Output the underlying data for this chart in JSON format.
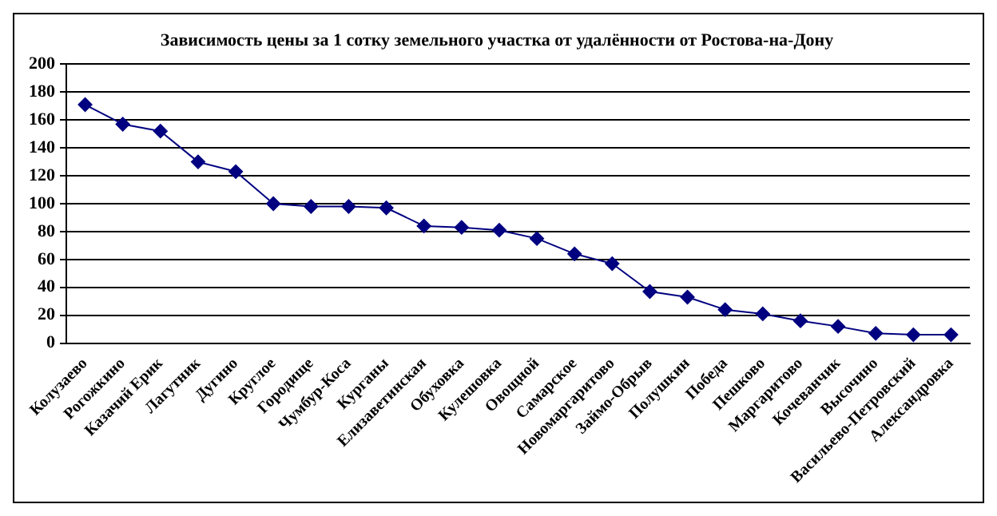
{
  "chart_data": {
    "type": "line",
    "title": "Зависимость цены за 1 сотку земельного участка от удалённости от Ростова-на-Дону",
    "categories": [
      "Колузаево",
      "Рогожкино",
      "Казачий Ерик",
      "Лагутник",
      "Дугино",
      "Круглое",
      "Городище",
      "Чумбур-Коса",
      "Курганы",
      "Елизаветинская",
      "Обуховка",
      "Кулешовка",
      "Овощной",
      "Самарское",
      "Новомаргаритово",
      "Займо-Обрыв",
      "Полушкин",
      "Победа",
      "Пешково",
      "Маргаритово",
      "Кочеванчик",
      "Высочино",
      "Васильево-Петровский",
      "Александровка"
    ],
    "series": [
      {
        "color": "#000080",
        "values": [
          171,
          157,
          152,
          130,
          123,
          100,
          98,
          98,
          97,
          84,
          83,
          81,
          75,
          64,
          57,
          37,
          33,
          24,
          21,
          16,
          12,
          7,
          6,
          6
        ]
      }
    ],
    "ylim": [
      0,
      200
    ],
    "yticks": [
      0,
      20,
      40,
      60,
      80,
      100,
      120,
      140,
      160,
      180,
      200
    ],
    "grid": "y",
    "legend": false,
    "marker": "diamond",
    "line_style": "solid"
  }
}
